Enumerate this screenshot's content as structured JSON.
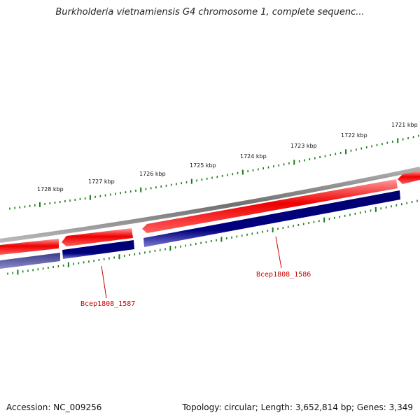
{
  "title": "Burkholderia vietnamiensis G4 chromosome 1, complete sequenc...",
  "accession": "Accession: NC_009256",
  "summary": "Topology: circular; Length: 3,652,814 bp; Genes: 3,349",
  "colors": {
    "backbone": "#7f7f7f",
    "gene_forward": "#ee0000",
    "cds_forward": "#000080",
    "ticks": "#1a7a1a",
    "label": "#cc0000"
  },
  "ticks": [
    "1728 kbp",
    "1727 kbp",
    "1726 kbp",
    "1725 kbp",
    "1724 kbp",
    "1723 kbp",
    "1722 kbp",
    "1721 kbp"
  ],
  "genes": [
    {
      "name": "Bcep1808_1587",
      "strand": "reverse"
    },
    {
      "name": "Bcep1808_1586",
      "strand": "reverse"
    }
  ]
}
